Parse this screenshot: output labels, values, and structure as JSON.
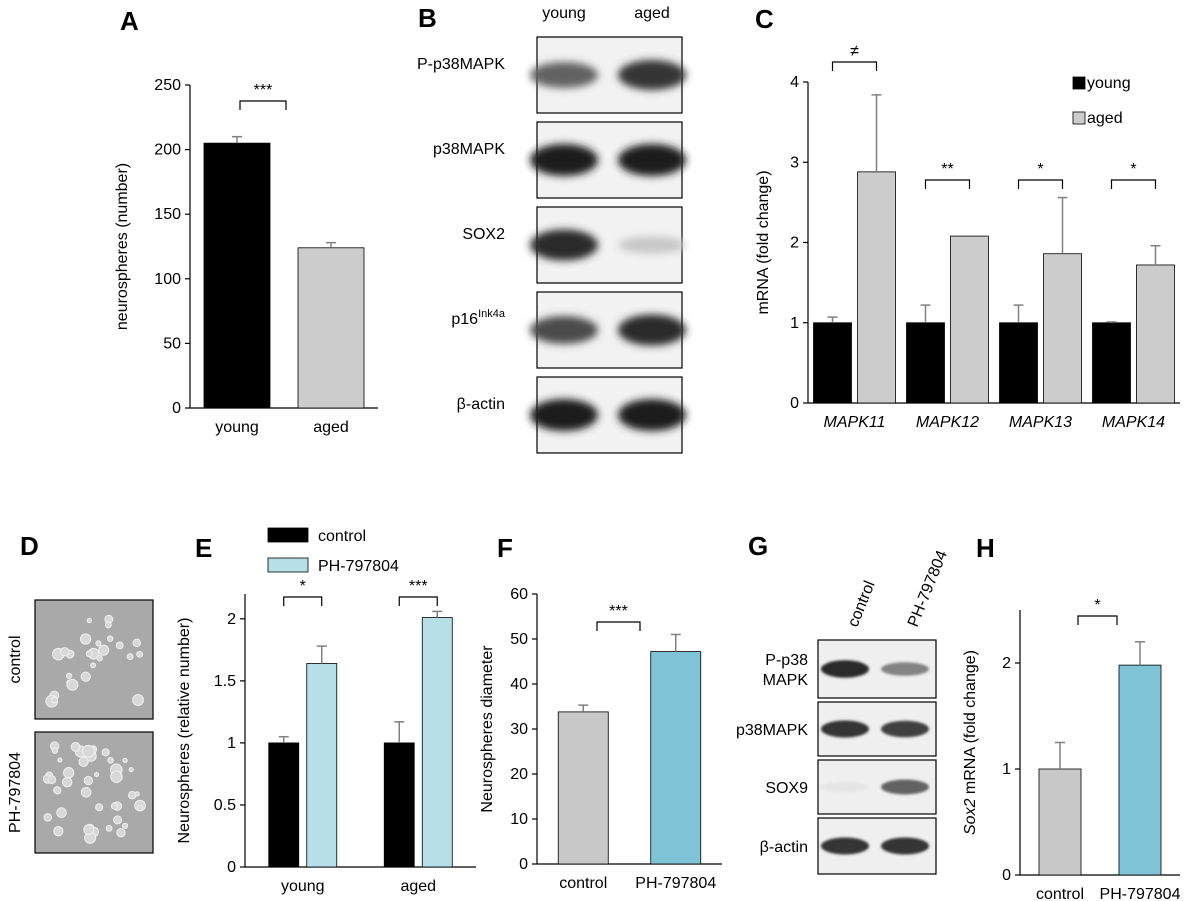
{
  "panels": {
    "A": "A",
    "B": "B",
    "C": "C",
    "D": "D",
    "E": "E",
    "F": "F",
    "G": "G",
    "H": "H"
  },
  "colors": {
    "young": "#000000",
    "aged": "#cccccc",
    "control_gray": "#c8c8c8",
    "ph_light": "#b7dfe8",
    "ph_teal": "#7ec3d6",
    "error": "#808080"
  },
  "blot_B": {
    "columns": [
      "young",
      "aged"
    ],
    "rows": [
      {
        "label_main": "P-p38MAPK",
        "label_sup": "",
        "bands": [
          0.7,
          0.9
        ]
      },
      {
        "label_main": "p38MAPK",
        "label_sup": "",
        "bands": [
          1.0,
          1.0
        ]
      },
      {
        "label_main": "SOX2",
        "label_sup": "",
        "bands": [
          0.95,
          0.25
        ]
      },
      {
        "label_main": "p16",
        "label_sup": "Ink4a",
        "bands": [
          0.8,
          0.95
        ]
      },
      {
        "label_main": "β-actin",
        "label_sup": "",
        "bands": [
          1.0,
          1.0
        ]
      }
    ]
  },
  "micro_D": {
    "labels": [
      "control",
      "PH-797804"
    ]
  },
  "blot_G": {
    "columns": [
      "control",
      "PH-797804"
    ],
    "rows": [
      {
        "label_lines": [
          "P-p38",
          "MAPK"
        ],
        "bands": [
          0.95,
          0.55
        ]
      },
      {
        "label_lines": [
          "p38MAPK"
        ],
        "bands": [
          0.9,
          0.85
        ]
      },
      {
        "label_lines": [
          "SOX9"
        ],
        "bands": [
          0.12,
          0.7
        ]
      },
      {
        "label_lines": [
          "β-actin"
        ],
        "bands": [
          0.9,
          0.9
        ]
      }
    ]
  },
  "chart_data": [
    {
      "panel": "A",
      "type": "bar",
      "categories": [
        "young",
        "aged"
      ],
      "values": [
        205,
        124
      ],
      "errors": [
        5,
        4
      ],
      "colors": [
        "#000000",
        "#cccccc"
      ],
      "ylabel": "neurospheres (number)",
      "ylim": [
        0,
        250
      ],
      "yticks": [
        0,
        50,
        100,
        150,
        200,
        250
      ],
      "significance": [
        {
          "from": 0,
          "to": 1,
          "label": "***"
        }
      ]
    },
    {
      "panel": "C",
      "type": "bar",
      "categories": [
        "MAPK11",
        "MAPK12",
        "MAPK13",
        "MAPK14"
      ],
      "series": [
        {
          "name": "young",
          "values": [
            1.0,
            1.0,
            1.0,
            1.0
          ],
          "errors": [
            0.07,
            0.22,
            0.22,
            0.01
          ],
          "color": "#000000"
        },
        {
          "name": "aged",
          "values": [
            2.88,
            2.08,
            1.86,
            1.72
          ],
          "errors": [
            0.96,
            0.0,
            0.7,
            0.24
          ],
          "color": "#cccccc"
        }
      ],
      "ylabel": "mRNA (fold change)",
      "ylim": [
        0,
        4
      ],
      "yticks": [
        0,
        1,
        2,
        3,
        4
      ],
      "legend": "top-right",
      "significance": [
        "≠",
        "**",
        "*",
        "*"
      ]
    },
    {
      "panel": "E",
      "type": "bar",
      "categories": [
        "young",
        "aged"
      ],
      "series": [
        {
          "name": "control",
          "values": [
            1.0,
            1.0
          ],
          "errors": [
            0.05,
            0.17
          ],
          "color": "#000000"
        },
        {
          "name": "PH-797804",
          "values": [
            1.64,
            2.01
          ],
          "errors": [
            0.14,
            0.05
          ],
          "color": "#b7dfe8"
        }
      ],
      "ylabel": "Neurospheres (relative number)",
      "ylim": [
        0,
        2.2
      ],
      "yticks": [
        0,
        0.5,
        1,
        1.5,
        2
      ],
      "ytick_labels": [
        "0",
        "0.5",
        "1",
        "1.5",
        "2"
      ],
      "legend": "top-left",
      "significance": [
        "*",
        "***"
      ]
    },
    {
      "panel": "F",
      "type": "bar",
      "categories": [
        "control",
        "PH-797804"
      ],
      "values": [
        33.8,
        47.2
      ],
      "errors": [
        1.5,
        3.8
      ],
      "colors": [
        "#c8c8c8",
        "#7ec3d6"
      ],
      "ylabel": "Neurospheres  diameter",
      "ylim": [
        0,
        60
      ],
      "yticks": [
        0,
        10,
        20,
        30,
        40,
        50,
        60
      ],
      "significance": [
        {
          "from": 0,
          "to": 1,
          "label": "***"
        }
      ]
    },
    {
      "panel": "H",
      "type": "bar",
      "categories": [
        "control",
        "PH-797804"
      ],
      "values": [
        1.0,
        1.98
      ],
      "errors": [
        0.25,
        0.22
      ],
      "colors": [
        "#c8c8c8",
        "#7ec3d6"
      ],
      "ylabel_italic": "Sox2",
      "ylabel_rest": " mRNA (fold change)",
      "ylim": [
        0,
        2.5
      ],
      "yticks": [
        0,
        1,
        2
      ],
      "significance": [
        {
          "from": 0,
          "to": 1,
          "label": "*"
        }
      ]
    }
  ]
}
